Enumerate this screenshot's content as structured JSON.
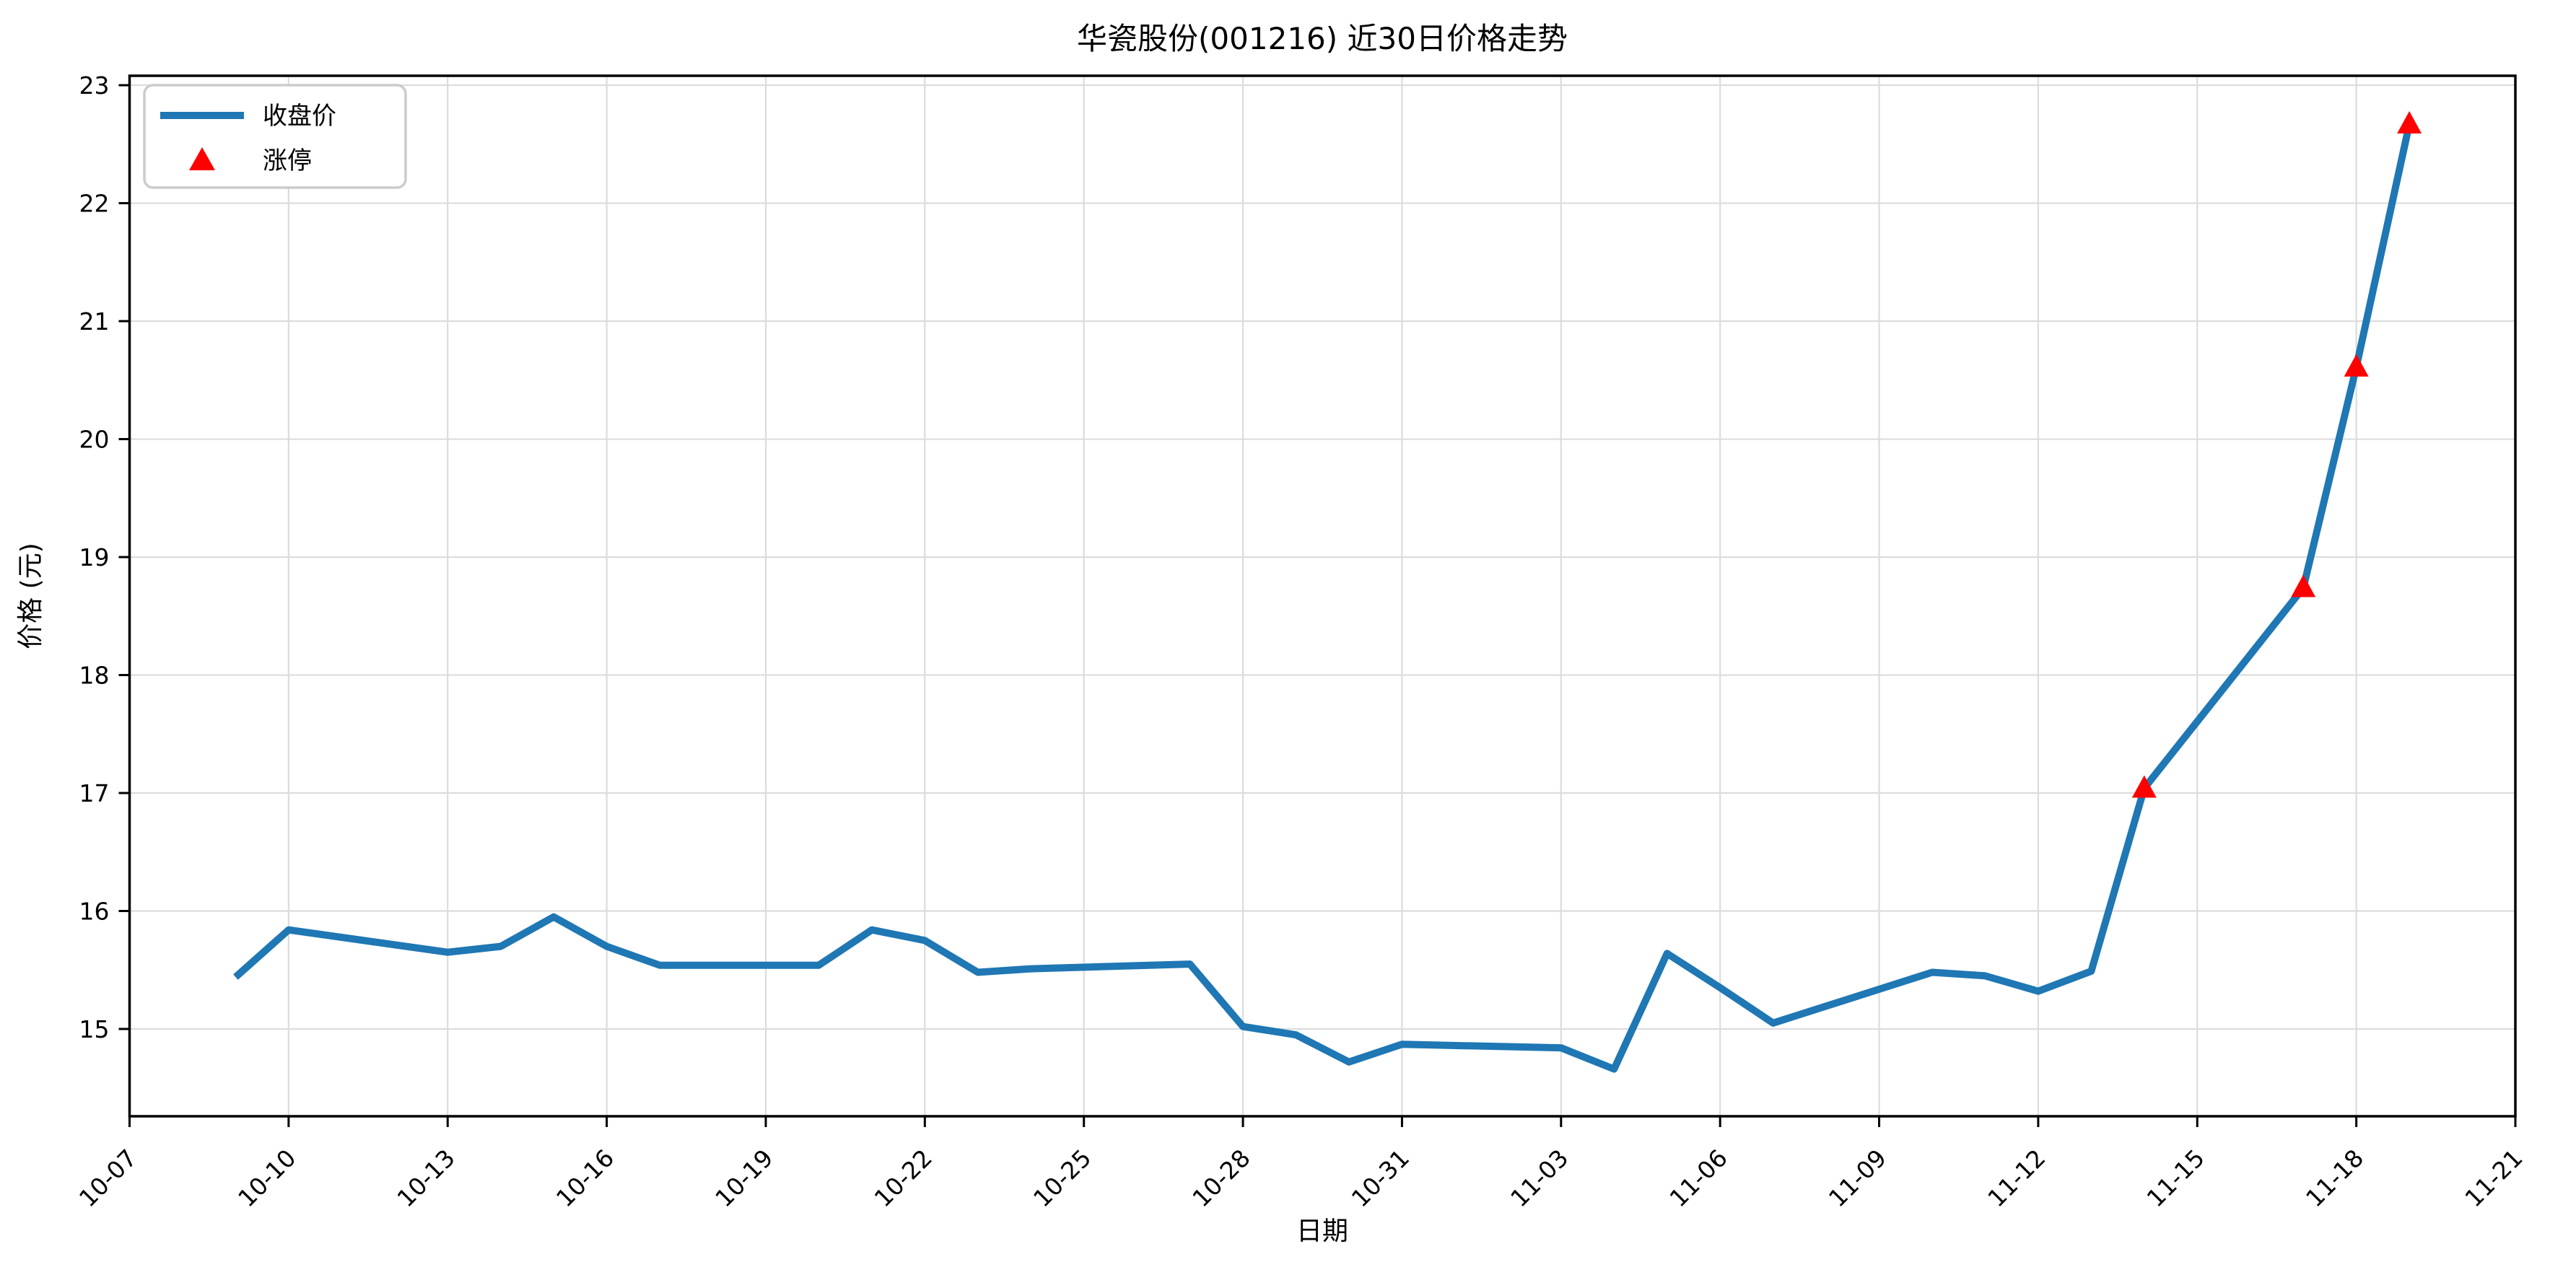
{
  "page": {
    "background": "#ffffff"
  },
  "chart_data": {
    "type": "line",
    "title": "华瓷股份(001216) 近30日价格走势",
    "xlabel": "日期",
    "ylabel": "价格 (元)",
    "grid": true,
    "grid_color": "#dcdcdc",
    "axis_color": "#000000",
    "legend_position": "upper left",
    "xlim_days": [
      0,
      45
    ],
    "ylim": [
      14.26,
      23.08
    ],
    "x_ticks": [
      {
        "label": "10-07",
        "day": 0
      },
      {
        "label": "10-10",
        "day": 3
      },
      {
        "label": "10-13",
        "day": 6
      },
      {
        "label": "10-16",
        "day": 9
      },
      {
        "label": "10-19",
        "day": 12
      },
      {
        "label": "10-22",
        "day": 15
      },
      {
        "label": "10-25",
        "day": 18
      },
      {
        "label": "10-28",
        "day": 21
      },
      {
        "label": "10-31",
        "day": 24
      },
      {
        "label": "11-03",
        "day": 27
      },
      {
        "label": "11-06",
        "day": 30
      },
      {
        "label": "11-09",
        "day": 33
      },
      {
        "label": "11-12",
        "day": 36
      },
      {
        "label": "11-15",
        "day": 39
      },
      {
        "label": "11-18",
        "day": 42
      },
      {
        "label": "11-21",
        "day": 45
      }
    ],
    "y_ticks": [
      15,
      16,
      17,
      18,
      19,
      20,
      21,
      22,
      23
    ],
    "series": [
      {
        "name": "收盘价",
        "color": "#1f77b4",
        "line_width": 10,
        "points": [
          {
            "date": "10-09",
            "day": 2,
            "price": 15.44
          },
          {
            "date": "10-10",
            "day": 3,
            "price": 15.84
          },
          {
            "date": "10-13",
            "day": 6,
            "price": 15.65
          },
          {
            "date": "10-14",
            "day": 7,
            "price": 15.7
          },
          {
            "date": "10-15",
            "day": 8,
            "price": 15.95
          },
          {
            "date": "10-16",
            "day": 9,
            "price": 15.7
          },
          {
            "date": "10-17",
            "day": 10,
            "price": 15.54
          },
          {
            "date": "10-20",
            "day": 13,
            "price": 15.54
          },
          {
            "date": "10-21",
            "day": 14,
            "price": 15.84
          },
          {
            "date": "10-22",
            "day": 15,
            "price": 15.75
          },
          {
            "date": "10-23",
            "day": 16,
            "price": 15.48
          },
          {
            "date": "10-24",
            "day": 17,
            "price": 15.51
          },
          {
            "date": "10-27",
            "day": 20,
            "price": 15.55
          },
          {
            "date": "10-28",
            "day": 21,
            "price": 15.02
          },
          {
            "date": "10-29",
            "day": 22,
            "price": 14.95
          },
          {
            "date": "10-30",
            "day": 23,
            "price": 14.72
          },
          {
            "date": "10-31",
            "day": 24,
            "price": 14.87
          },
          {
            "date": "11-03",
            "day": 27,
            "price": 14.84
          },
          {
            "date": "11-04",
            "day": 28,
            "price": 14.66
          },
          {
            "date": "11-05",
            "day": 29,
            "price": 15.64
          },
          {
            "date": "11-06",
            "day": 30,
            "price": 15.35
          },
          {
            "date": "11-07",
            "day": 31,
            "price": 15.05
          },
          {
            "date": "11-10",
            "day": 34,
            "price": 15.48
          },
          {
            "date": "11-11",
            "day": 35,
            "price": 15.45
          },
          {
            "date": "11-12",
            "day": 36,
            "price": 15.32
          },
          {
            "date": "11-13",
            "day": 37,
            "price": 15.49
          },
          {
            "date": "11-14",
            "day": 38,
            "price": 17.04,
            "limit_up": true
          },
          {
            "date": "11-17",
            "day": 41,
            "price": 18.74,
            "limit_up": true
          },
          {
            "date": "11-18",
            "day": 42,
            "price": 20.61,
            "limit_up": true
          },
          {
            "date": "11-19",
            "day": 43,
            "price": 22.67,
            "limit_up": true
          }
        ]
      }
    ],
    "markers": {
      "name": "涨停",
      "shape": "triangle-up",
      "color": "#ff0000",
      "dates": [
        "11-14",
        "11-17",
        "11-18",
        "11-19"
      ]
    },
    "legend": [
      {
        "label": "收盘价",
        "swatch": "line",
        "color": "#1f77b4"
      },
      {
        "label": "涨停",
        "swatch": "triangle-up",
        "color": "#ff0000"
      }
    ]
  }
}
